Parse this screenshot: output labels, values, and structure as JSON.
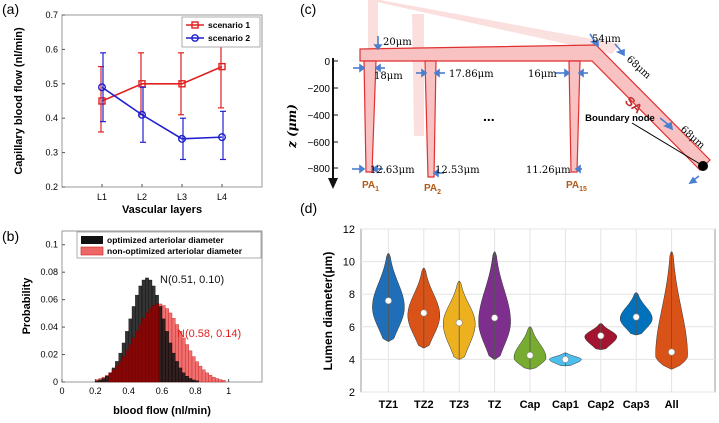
{
  "chart_data": [
    {
      "panel": "(a)",
      "type": "line",
      "categories": [
        "L1",
        "L2",
        "L3",
        "L4"
      ],
      "xlabel": "Vascular layers",
      "ylabel": "Capillary blood flow (nl/min)",
      "ylim": [
        0.2,
        0.7
      ],
      "yticks": [
        "0.2",
        "0.3",
        "0.4",
        "0.5",
        "0.6",
        "0.7"
      ],
      "series": [
        {
          "name": "scenario 1",
          "color": "#e02020",
          "marker": "square",
          "values": [
            0.45,
            0.5,
            0.5,
            0.55
          ],
          "err_low": [
            0.36,
            0.41,
            0.41,
            0.43
          ],
          "err_high": [
            0.55,
            0.59,
            0.59,
            0.66
          ]
        },
        {
          "name": "scenario 2",
          "color": "#2020d0",
          "marker": "circle",
          "values": [
            0.49,
            0.41,
            0.34,
            0.345
          ],
          "err_low": [
            0.39,
            0.33,
            0.28,
            0.28
          ],
          "err_high": [
            0.59,
            0.49,
            0.4,
            0.42
          ]
        }
      ],
      "legend": "top-right"
    },
    {
      "panel": "(b)",
      "type": "histogram",
      "xlabel": "blood flow (nl/min)",
      "ylabel": "Probability",
      "xlim": [
        0,
        1.2
      ],
      "ylim": [
        0,
        0.11
      ],
      "xticks": [
        "0",
        "0.2",
        "0.4",
        "0.6",
        "0.8",
        "1"
      ],
      "yticks": [
        "0",
        "0.02",
        "0.04",
        "0.06",
        "0.08",
        "0.1"
      ],
      "series": [
        {
          "name": "optimized arteriolar diameter",
          "color": "#111111",
          "annotation": "N(0.51, 0.10)",
          "mean": 0.51,
          "std": 0.1
        },
        {
          "name": "non-optimized arteriolar diameter",
          "color": "#ee4444",
          "annotation": "N(0.58, 0.14)",
          "mean": 0.58,
          "std": 0.14
        }
      ],
      "legend": "top-right"
    },
    {
      "panel": "(d)",
      "type": "violin",
      "categories": [
        "TZ1",
        "TZ2",
        "TZ3",
        "TZ",
        "Cap",
        "Cap1",
        "Cap2",
        "Cap3",
        "All"
      ],
      "ylabel": "Lumen diameter(μm)",
      "ylim": [
        2,
        12
      ],
      "yticks": [
        "2",
        "4",
        "6",
        "8",
        "10",
        "12"
      ],
      "colors": [
        "#1f6fb8",
        "#d95319",
        "#edb120",
        "#7e2f8e",
        "#77ac30",
        "#4dbeee",
        "#a2142f",
        "#0072bd",
        "#d95319"
      ],
      "min": [
        5.1,
        4.7,
        4.0,
        4.0,
        3.4,
        3.6,
        4.6,
        5.5,
        3.4
      ],
      "max": [
        10.5,
        9.6,
        8.8,
        10.6,
        6.0,
        4.4,
        6.2,
        8.1,
        10.6
      ],
      "median": [
        7.6,
        6.85,
        6.25,
        6.55,
        4.25,
        4.0,
        5.45,
        6.6,
        4.45
      ],
      "mode": [
        7.2,
        6.7,
        6.2,
        6.3,
        4.1,
        4.0,
        5.4,
        6.5,
        4.2
      ]
    }
  ],
  "panel_c": {
    "label": "(c)",
    "zlabel": "z (μm)",
    "zticks": [
      "0",
      "−200",
      "−400",
      "−600",
      "−800"
    ],
    "annotations": [
      "20μm",
      "54μm",
      "68μm",
      "18μm",
      "17.86μm",
      "16μm",
      "68μm",
      "12.63μm",
      "12.53μm",
      "11.26μm"
    ],
    "sa_label": "SA",
    "boundary_label": "Boundary node",
    "ellipsis": "...",
    "pa_labels": [
      {
        "base": "PA",
        "sub": "1"
      },
      {
        "base": "PA",
        "sub": "2"
      },
      {
        "base": "PA",
        "sub": "15"
      }
    ]
  },
  "panel_labels": {
    "a": "(a)",
    "b": "(b)",
    "d": "(d)"
  }
}
